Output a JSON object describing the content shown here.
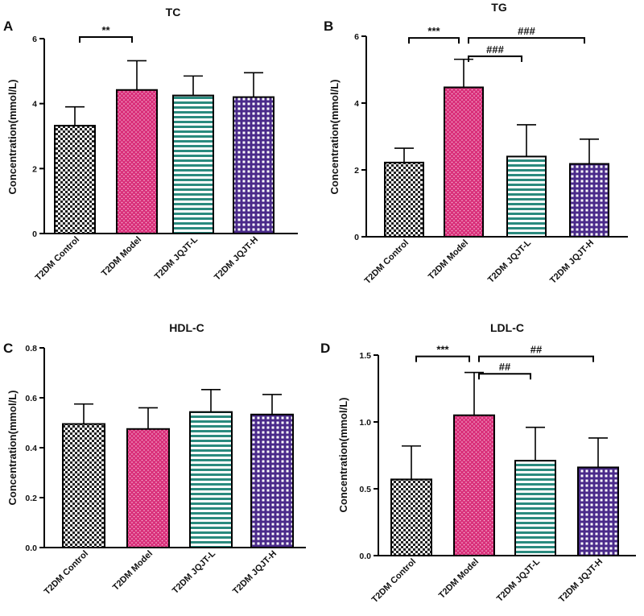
{
  "colors": {
    "control": "#222222",
    "model": "#d9307a",
    "jqjt_l": "#2a8a7e",
    "jqjt_h": "#4a2a8a"
  },
  "chart_data": [
    {
      "type": "bar",
      "panel": "A",
      "title": "TC",
      "ylabel": "Concentration(mmol/L)",
      "ylim": [
        0,
        6
      ],
      "yticks": [
        0,
        2,
        4,
        6
      ],
      "ytick_labels": [
        "0",
        "2",
        "4",
        "6"
      ],
      "categories": [
        "T2DM Control",
        "T2DM Model",
        "T2DM JQJT-L",
        "T2DM JQJT-H"
      ],
      "values": [
        3.32,
        4.42,
        4.25,
        4.2
      ],
      "errors": [
        0.58,
        0.9,
        0.6,
        0.75
      ],
      "significance": [
        {
          "from": 0,
          "to": 1,
          "label": "**",
          "y": 6.05
        }
      ]
    },
    {
      "type": "bar",
      "panel": "B",
      "title": "TG",
      "ylabel": "Concentration(mmol/L)",
      "ylim": [
        0,
        6
      ],
      "yticks": [
        0,
        2,
        4,
        6
      ],
      "ytick_labels": [
        "0",
        "2",
        "4",
        "6"
      ],
      "categories": [
        "T2DM Control",
        "T2DM Model",
        "T2DM JQJT-L",
        "T2DM JQJT-H"
      ],
      "values": [
        2.22,
        4.47,
        2.4,
        2.18
      ],
      "errors": [
        0.43,
        0.84,
        0.95,
        0.74
      ],
      "significance": [
        {
          "from": 0,
          "to": 1,
          "label": "***",
          "y": 5.95
        },
        {
          "from": 1,
          "to": 3,
          "label": "###",
          "y": 5.95
        },
        {
          "from": 1,
          "to": 2,
          "label": "###",
          "y": 5.4
        }
      ]
    },
    {
      "type": "bar",
      "panel": "C",
      "title": "HDL-C",
      "ylabel": "Concentration(mmol/L)",
      "ylim": [
        0,
        0.8
      ],
      "yticks": [
        0,
        0.2,
        0.4,
        0.6,
        0.8
      ],
      "ytick_labels": [
        "0.0",
        "0.2",
        "0.4",
        "0.6",
        "0.8"
      ],
      "categories": [
        "T2DM Control",
        "T2DM Model",
        "T2DM JQJT-L",
        "T2DM JQJT-H"
      ],
      "values": [
        0.495,
        0.475,
        0.543,
        0.533
      ],
      "errors": [
        0.08,
        0.085,
        0.09,
        0.08
      ],
      "significance": []
    },
    {
      "type": "bar",
      "panel": "D",
      "title": "LDL-C",
      "ylabel": "Concentration(mmol/L)",
      "ylim": [
        0,
        1.5
      ],
      "yticks": [
        0,
        0.5,
        1.0,
        1.5
      ],
      "ytick_labels": [
        "0.0",
        "0.5",
        "1.0",
        "1.5"
      ],
      "categories": [
        "T2DM Control",
        "T2DM Model",
        "T2DM JQJT-L",
        "T2DM JQJT-H"
      ],
      "values": [
        0.57,
        1.05,
        0.71,
        0.66
      ],
      "errors": [
        0.25,
        0.32,
        0.25,
        0.22
      ],
      "significance": [
        {
          "from": 0,
          "to": 1,
          "label": "***",
          "y": 1.49
        },
        {
          "from": 1,
          "to": 3,
          "label": "##",
          "y": 1.49
        },
        {
          "from": 1,
          "to": 2,
          "label": "##",
          "y": 1.36
        }
      ]
    }
  ]
}
